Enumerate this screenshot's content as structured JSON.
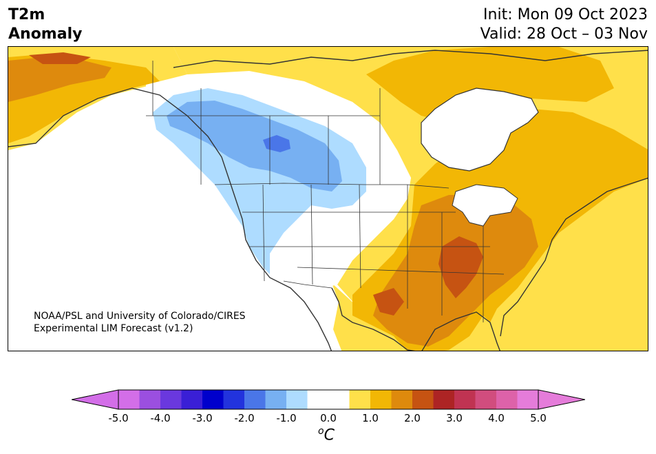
{
  "header": {
    "title_line1": "T2m",
    "title_line2": "Anomaly",
    "init": "Init: Mon 09 Oct 2023",
    "valid": "Valid: 28 Oct – 03 Nov"
  },
  "credit": {
    "line1": "NOAA/PSL and University of Colorado/CIRES",
    "line2": "Experimental LIM Forecast (v1.2)"
  },
  "colorbar": {
    "units_base": "C",
    "units_sup": "o",
    "ticks": [
      "-5.0",
      "-4.0",
      "-3.0",
      "-2.0",
      "-1.0",
      "0.0",
      "1.0",
      "2.0",
      "3.0",
      "4.0",
      "5.0"
    ],
    "colors": [
      "#d36ee8",
      "#9b4fe0",
      "#6a38de",
      "#3a1fd6",
      "#0000cc",
      "#2233dd",
      "#4a76e8",
      "#77b0f2",
      "#aedcff",
      "#ffffff",
      "#ffffff",
      "#ffe04a",
      "#f2b705",
      "#de8a0d",
      "#c65312",
      "#ad2424",
      "#c03352",
      "#d14d7e",
      "#dd62a9",
      "#e57cda"
    ],
    "extend_low_color": "#d36ee8",
    "extend_high_color": "#e57cda"
  },
  "map": {
    "anomaly_colors": {
      "cold_1": "#aedcff",
      "cold_2": "#77b0f2",
      "cold_3": "#4a76e8",
      "warm_1": "#ffe04a",
      "warm_2": "#f2b705",
      "warm_3": "#de8a0d",
      "warm_4": "#c65312"
    },
    "coastline_color": "#333333",
    "land_ice_color": "#ffffff"
  }
}
